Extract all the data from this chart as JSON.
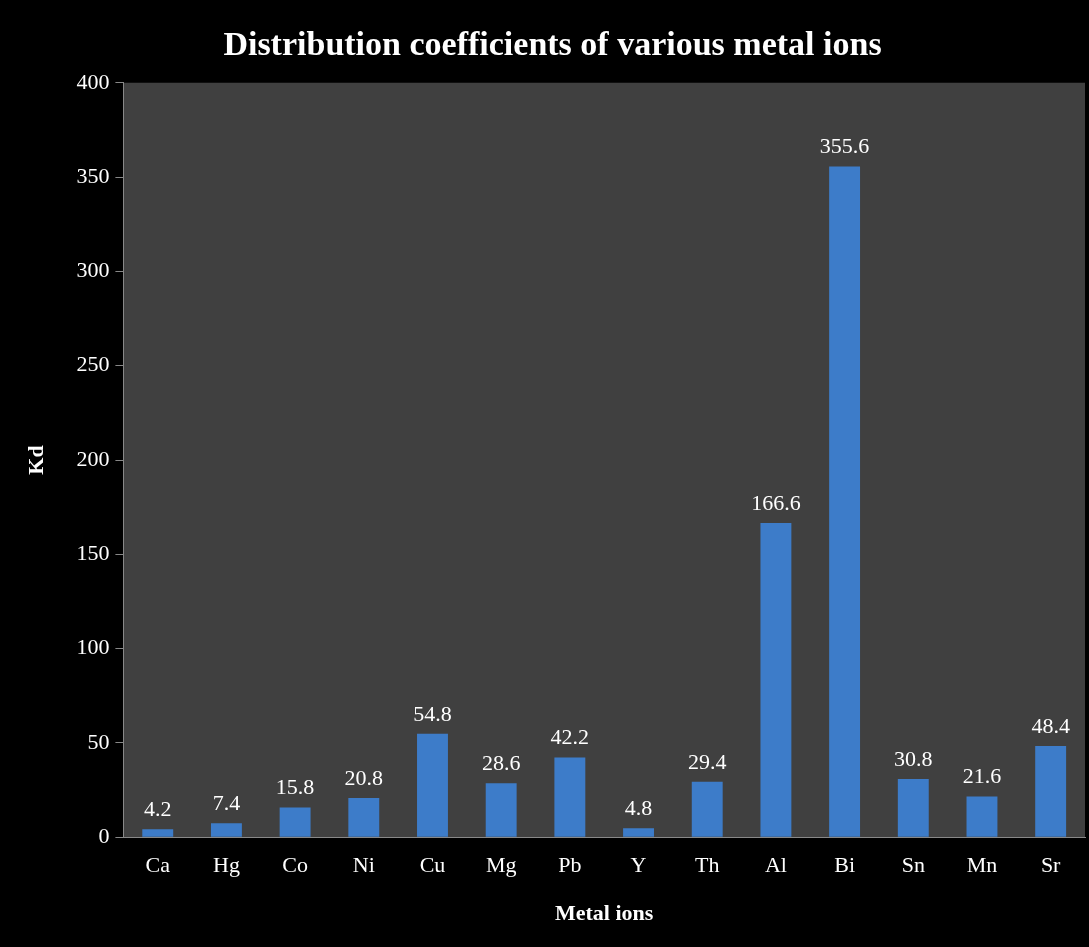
{
  "chart_data": {
    "type": "bar",
    "title": "Distribution coefficients of various metal ions",
    "xlabel": "Metal ions",
    "ylabel": "Kd",
    "categories": [
      "Ca",
      "Hg",
      "Co",
      "Ni",
      "Cu",
      "Mg",
      "Pb",
      "Y",
      "Th",
      "Al",
      "Bi",
      "Sn",
      "Mn",
      "Sr"
    ],
    "values": [
      4.2,
      7.4,
      15.8,
      20.8,
      54.8,
      28.6,
      42.2,
      4.8,
      29.4,
      166.6,
      355.6,
      30.8,
      21.6,
      48.4
    ],
    "color": "#3d7cc9",
    "ylim": [
      0,
      400
    ],
    "yticks": [
      0,
      50,
      100,
      150,
      200,
      250,
      300,
      350,
      400
    ],
    "grid": false,
    "legend": false,
    "data_labels": true
  }
}
